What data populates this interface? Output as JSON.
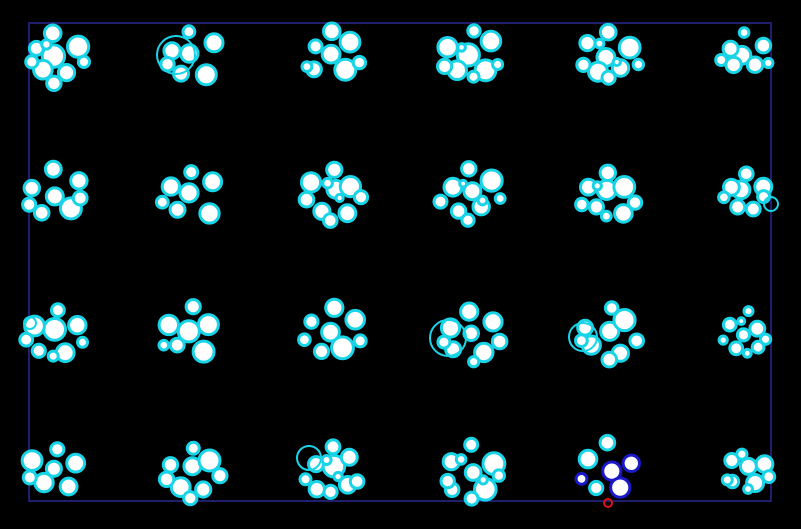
{
  "colors": {
    "background": "#000000",
    "frame": "#1f1f6e",
    "spot_ring": "#19d4e6",
    "spot_fill": "#ffffff",
    "selected_ring": "#1a18c8",
    "flag_ring": "#e01010"
  },
  "scene": {
    "grid_rows": 4,
    "grid_columns": 6,
    "clusters": [
      {
        "row": 1,
        "col": 1,
        "highlight": "none"
      },
      {
        "row": 1,
        "col": 2,
        "highlight": "none"
      },
      {
        "row": 1,
        "col": 3,
        "highlight": "none"
      },
      {
        "row": 1,
        "col": 4,
        "highlight": "none"
      },
      {
        "row": 1,
        "col": 5,
        "highlight": "none"
      },
      {
        "row": 1,
        "col": 6,
        "highlight": "none"
      },
      {
        "row": 2,
        "col": 1,
        "highlight": "none"
      },
      {
        "row": 2,
        "col": 2,
        "highlight": "none"
      },
      {
        "row": 2,
        "col": 3,
        "highlight": "none"
      },
      {
        "row": 2,
        "col": 4,
        "highlight": "none"
      },
      {
        "row": 2,
        "col": 5,
        "highlight": "none"
      },
      {
        "row": 2,
        "col": 6,
        "highlight": "none"
      },
      {
        "row": 3,
        "col": 1,
        "highlight": "none"
      },
      {
        "row": 3,
        "col": 2,
        "highlight": "none"
      },
      {
        "row": 3,
        "col": 3,
        "highlight": "none"
      },
      {
        "row": 3,
        "col": 4,
        "highlight": "none"
      },
      {
        "row": 3,
        "col": 5,
        "highlight": "none"
      },
      {
        "row": 3,
        "col": 6,
        "highlight": "none"
      },
      {
        "row": 4,
        "col": 1,
        "highlight": "none"
      },
      {
        "row": 4,
        "col": 2,
        "highlight": "none"
      },
      {
        "row": 4,
        "col": 3,
        "highlight": "none"
      },
      {
        "row": 4,
        "col": 4,
        "highlight": "none"
      },
      {
        "row": 4,
        "col": 5,
        "highlight": "selected"
      },
      {
        "row": 4,
        "col": 6,
        "highlight": "none"
      }
    ]
  }
}
